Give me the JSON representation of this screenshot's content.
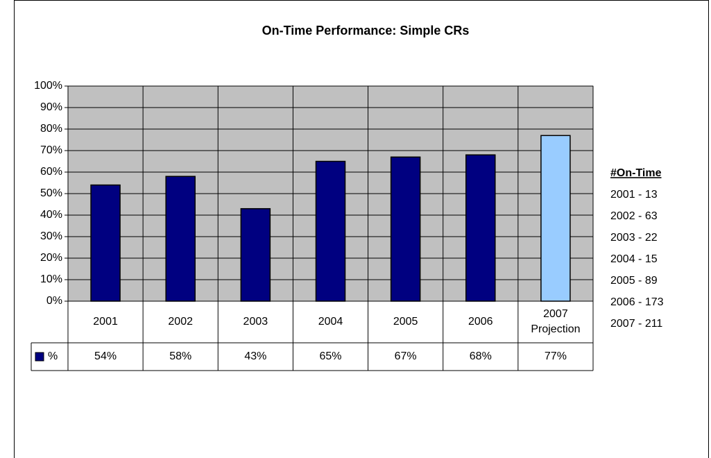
{
  "chart_data": {
    "type": "bar",
    "title": "On-Time Performance: Simple CRs",
    "categories": [
      "2001",
      "2002",
      "2003",
      "2004",
      "2005",
      "2006",
      "2007 Projection"
    ],
    "series": [
      {
        "name": "%",
        "color": "#000080",
        "colors": [
          "#000080",
          "#000080",
          "#000080",
          "#000080",
          "#000080",
          "#000080",
          "#99ccff"
        ],
        "values": [
          54,
          58,
          43,
          65,
          67,
          68,
          77
        ],
        "value_labels": [
          "54%",
          "58%",
          "43%",
          "65%",
          "67%",
          "68%",
          "77%"
        ]
      }
    ],
    "ylim": [
      0,
      100
    ],
    "yticks": [
      {
        "value": 0,
        "label": "0%"
      },
      {
        "value": 10,
        "label": "10%"
      },
      {
        "value": 20,
        "label": "20%"
      },
      {
        "value": 30,
        "label": "30%"
      },
      {
        "value": 40,
        "label": "40%"
      },
      {
        "value": 50,
        "label": "50%"
      },
      {
        "value": 60,
        "label": "60%"
      },
      {
        "value": 70,
        "label": "70%"
      },
      {
        "value": 80,
        "label": "80%"
      },
      {
        "value": 90,
        "label": "90%"
      },
      {
        "value": 100,
        "label": "100%"
      }
    ],
    "grid": true,
    "plot_background": "#c0c0c0",
    "annotation": {
      "title": "#On-Time",
      "items": [
        "2001 - 13",
        "2002 - 63",
        "2003 - 22",
        "2004 - 15",
        "2005 - 89",
        "2006 - 173",
        "2007 - 211"
      ]
    }
  }
}
